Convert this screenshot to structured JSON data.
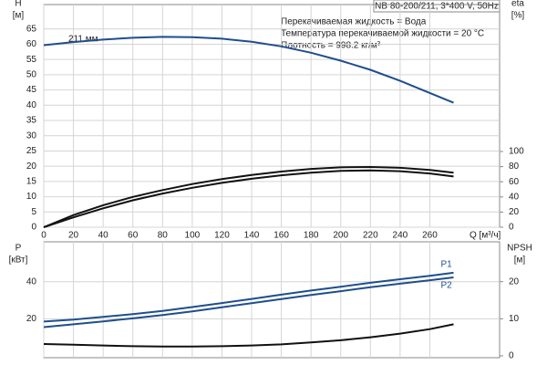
{
  "chart_data": [
    {
      "type": "line",
      "title": "NB 80-200/211, 3*400 V, 50Hz",
      "annotations": [
        "Перекачиваемая жидкость = Вода",
        "Температура перекачиваемой жидкости = 20 °C",
        "Плотность = 998.2 кг/м³"
      ],
      "curve_label": "211 мм",
      "y_label": "H",
      "y_unit": "[м]",
      "y2_label": "eta",
      "y2_unit": "[%]",
      "x_label": "Q [м³/ч]",
      "x": [
        0,
        20,
        40,
        60,
        80,
        100,
        120,
        140,
        160,
        180,
        200,
        220,
        240,
        260,
        276
      ],
      "xlim": [
        0,
        307
      ],
      "xticks": [
        0,
        20,
        40,
        60,
        80,
        100,
        120,
        140,
        160,
        180,
        200,
        220,
        240,
        260
      ],
      "ylim": [
        0,
        73
      ],
      "yticks": [
        0,
        5,
        10,
        15,
        20,
        25,
        30,
        35,
        40,
        45,
        50,
        55,
        60,
        65
      ],
      "y2lim": [
        0,
        294
      ],
      "y2ticks": [
        0,
        20,
        40,
        60,
        80,
        100
      ],
      "grid": true,
      "series": [
        {
          "color": "#1f4e8c",
          "values": [
            59.7,
            60.7,
            61.5,
            62.1,
            62.4,
            62.3,
            61.8,
            60.8,
            59.3,
            57.2,
            54.6,
            51.6,
            48,
            44,
            40.8
          ]
        },
        {
          "color": "#111111",
          "axis": "y2",
          "values": [
            0,
            16,
            29,
            40,
            49,
            57,
            63.5,
            69,
            73.5,
            77,
            79,
            79.5,
            78.5,
            75.5,
            72
          ]
        },
        {
          "color": "#111111",
          "axis": "y2",
          "values": [
            0,
            13,
            25,
            35.5,
            44.5,
            52,
            58.5,
            64,
            68.5,
            72,
            74.5,
            75,
            74,
            71,
            67
          ]
        }
      ]
    },
    {
      "type": "line",
      "y_label": "P",
      "y_unit": "[кВт]",
      "y2_label": "NPSH",
      "y2_unit": "[м]",
      "x": [
        0,
        20,
        40,
        60,
        80,
        100,
        120,
        140,
        160,
        180,
        200,
        220,
        240,
        260,
        276
      ],
      "xlim": [
        0,
        307
      ],
      "xticks": [
        0,
        20,
        40,
        60,
        80,
        100,
        120,
        140,
        160,
        180,
        200,
        220,
        240,
        260
      ],
      "ylim": [
        -1,
        61.5
      ],
      "yticks": [
        20,
        40
      ],
      "y2lim": [
        -0.5,
        30.75
      ],
      "y2ticks": [
        0,
        10,
        20
      ],
      "grid": true,
      "series": [
        {
          "name": "P1",
          "color": "#1f4e8c",
          "values": [
            18.5,
            19.5,
            21,
            22.5,
            24.2,
            26.3,
            28.5,
            30.7,
            33,
            35.2,
            37.3,
            39.4,
            41.3,
            43.2,
            44.8
          ]
        },
        {
          "name": "P2",
          "color": "#1f4e8c",
          "values": [
            15.5,
            17,
            18.6,
            20.2,
            22,
            24,
            26.2,
            28.4,
            30.6,
            32.8,
            34.9,
            37,
            38.9,
            40.8,
            42.3
          ]
        },
        {
          "color": "#111111",
          "axis": "y2",
          "values": [
            3.2,
            3,
            2.8,
            2.6,
            2.5,
            2.5,
            2.6,
            2.8,
            3.1,
            3.6,
            4.2,
            5,
            6,
            7.2,
            8.5
          ]
        }
      ]
    }
  ]
}
